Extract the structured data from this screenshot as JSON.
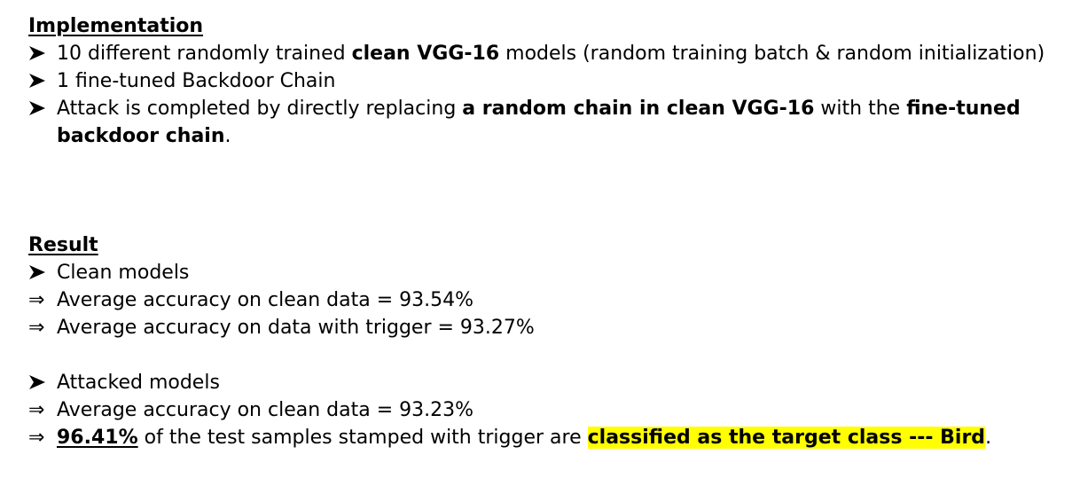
{
  "implementation": {
    "heading": "Implementation",
    "item1": {
      "pre": "10 different randomly trained ",
      "bold": "clean VGG-16",
      "post": " models  (random training batch & random initialization)"
    },
    "item2": {
      "text": "1 fine-tuned Backdoor Chain"
    },
    "item3": {
      "pre": "Attack is completed by directly replacing ",
      "bold1": "a random chain in clean VGG-16",
      "mid": " with the ",
      "bold2": "fine-tuned",
      "bold3": "backdoor chain",
      "post": "."
    }
  },
  "result": {
    "heading": "Result",
    "clean": {
      "label": "Clean models",
      "line1": "Average accuracy on clean data = 93.54%",
      "line2": "Average accuracy on data with trigger = 93.27%"
    },
    "attacked": {
      "label": "Attacked models",
      "line1": "Average accuracy on clean data = 93.23%",
      "line2_bold": "96.41%",
      "line2_mid": " of the test samples stamped with trigger are ",
      "line2_highlight": "classified as the target class --- Bird",
      "line2_post": "."
    }
  },
  "markers": {
    "implies": "⇒"
  },
  "colors": {
    "highlight": "#ffff00",
    "text": "#000000"
  }
}
